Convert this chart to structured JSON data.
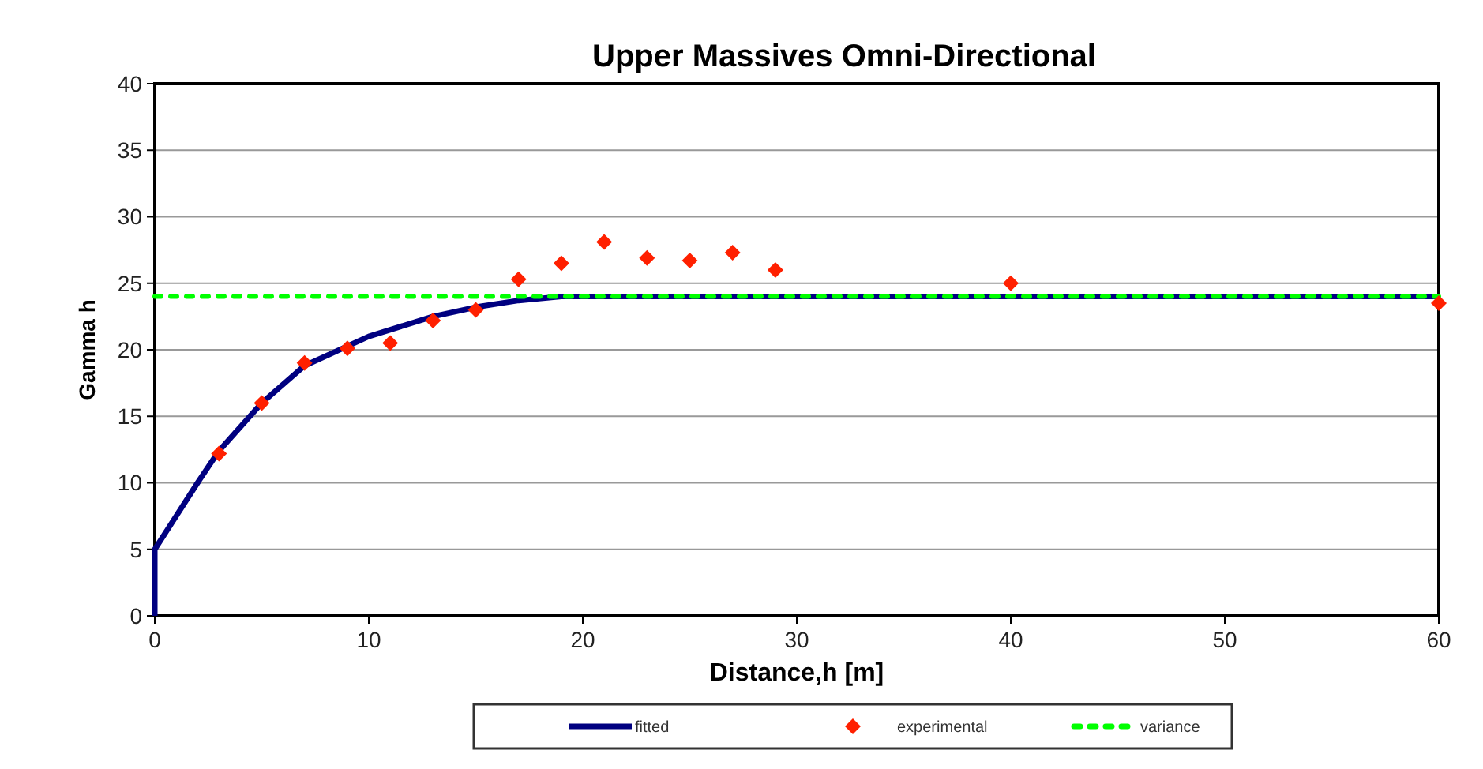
{
  "chart_data": {
    "type": "line",
    "title": "Upper Massives Omni-Directional",
    "xlabel": "Distance,h [m]",
    "ylabel": "Gamma h",
    "xlim": [
      0,
      60
    ],
    "xticks": [
      0,
      10,
      20,
      30,
      40,
      50,
      60
    ],
    "ylim": [
      0,
      40
    ],
    "yticks": [
      0,
      5,
      10,
      15,
      20,
      25,
      30,
      35,
      40
    ],
    "grid": "y",
    "legend": "bottom",
    "series": [
      {
        "name": "fitted",
        "color": "#000080",
        "line_style": "solid",
        "marker": "none",
        "x": [
          0,
          0,
          1,
          2,
          3,
          5,
          7,
          10,
          13,
          15,
          17,
          19,
          20,
          60
        ],
        "values": [
          0,
          5,
          7.5,
          10,
          12.4,
          16,
          18.8,
          21,
          22.5,
          23.2,
          23.7,
          24,
          24,
          24
        ]
      },
      {
        "name": "experimental",
        "type": "scatter",
        "color": "#ff2000",
        "marker": "diamond",
        "x": [
          3,
          5,
          7,
          9,
          11,
          13,
          15,
          17,
          19,
          21,
          23,
          25,
          27,
          29,
          40,
          60
        ],
        "values": [
          12.2,
          16,
          19,
          20.1,
          20.5,
          22.2,
          23,
          25.3,
          26.5,
          28.1,
          26.9,
          26.7,
          27.3,
          26,
          25,
          23.5
        ]
      },
      {
        "name": "variance",
        "color": "#00ff00",
        "line_style": "dotted",
        "marker": "none",
        "x": [
          0,
          60
        ],
        "values": [
          24,
          24
        ]
      }
    ]
  }
}
